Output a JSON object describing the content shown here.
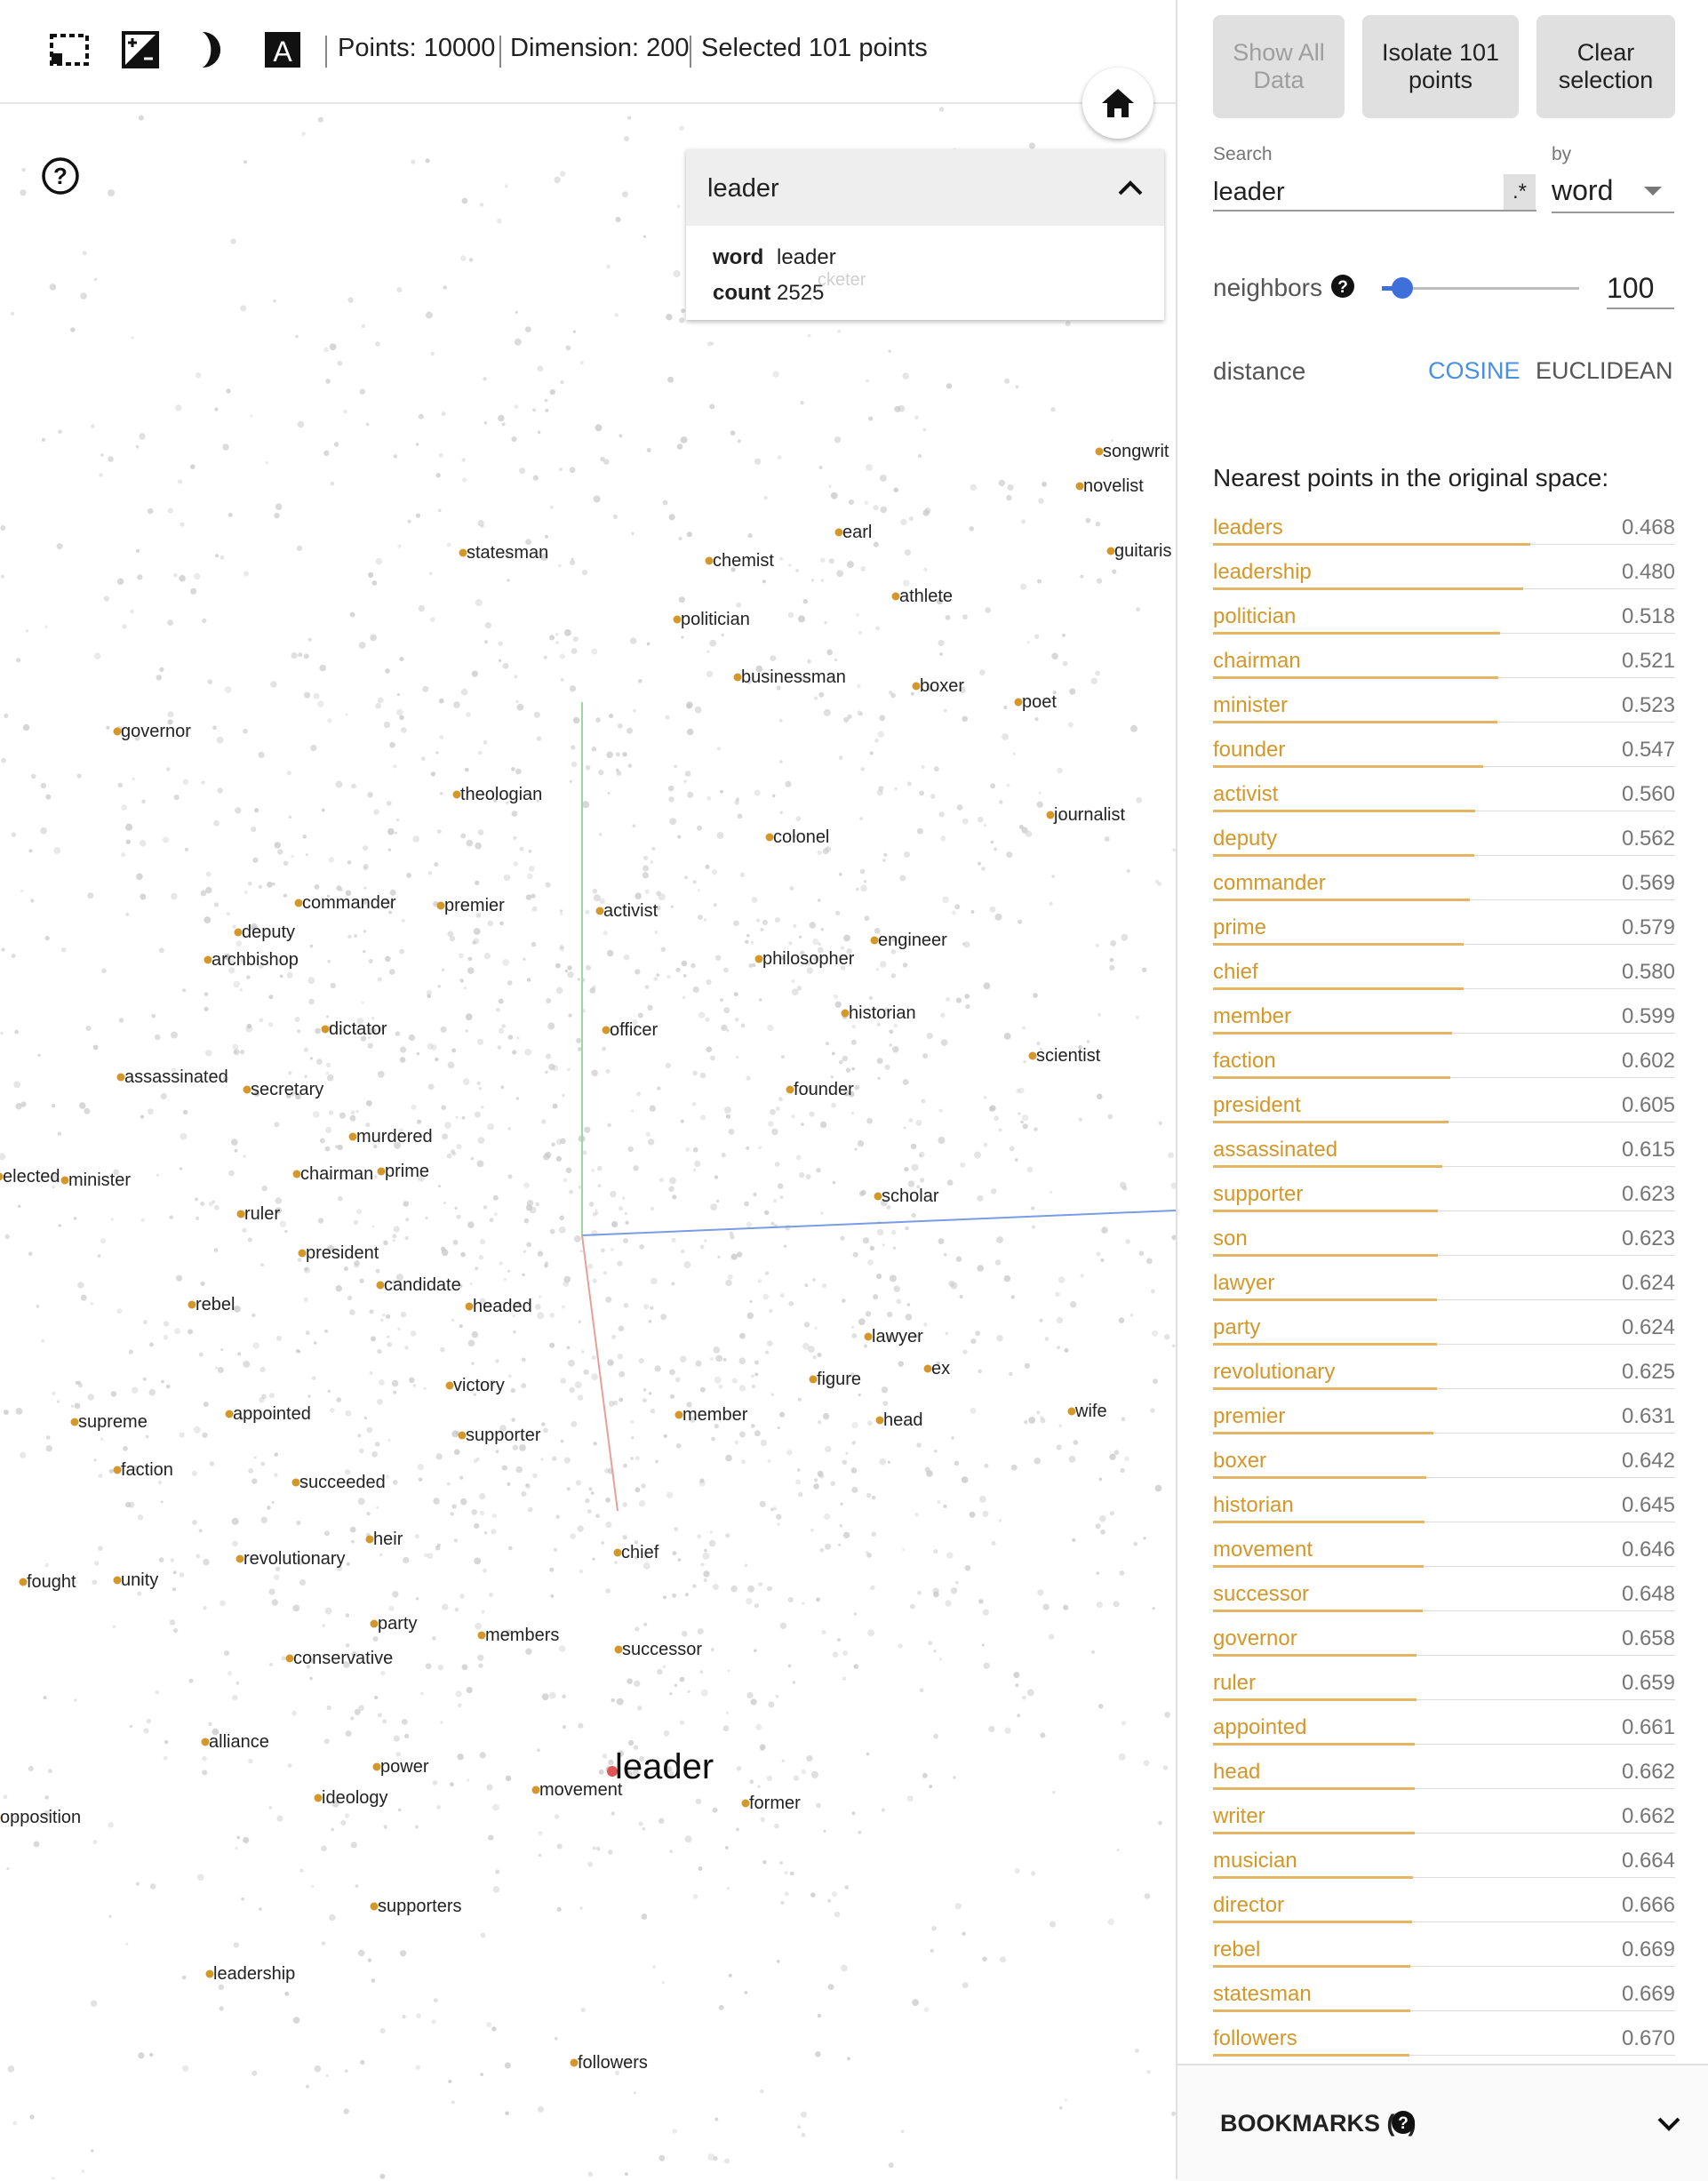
{
  "toolbar": {
    "points": "Points: 10000",
    "dimension": "Dimension: 200",
    "selected": "Selected 101 points"
  },
  "inspector_card": {
    "title": "leader",
    "word_key": "word",
    "word_value": "leader",
    "count_key": "count",
    "count_value": "2525",
    "ghost_label": "cketer"
  },
  "panel": {
    "buttons": {
      "show_all": "Show All Data",
      "isolate": "Isolate 101 points",
      "clear": "Clear selection"
    },
    "search": {
      "label": "Search",
      "value": "leader",
      "regex": ".*",
      "by_label": "by",
      "by_value": "word"
    },
    "neighbors": {
      "label": "neighbors",
      "value": "100"
    },
    "distance": {
      "label": "distance",
      "cosine": "COSINE",
      "euclidean": "EUCLIDEAN",
      "active": "cosine"
    },
    "nearest_title": "Nearest points in the original space:",
    "nearest": [
      {
        "word": "leaders",
        "dist": "0.468"
      },
      {
        "word": "leadership",
        "dist": "0.480"
      },
      {
        "word": "politician",
        "dist": "0.518"
      },
      {
        "word": "chairman",
        "dist": "0.521"
      },
      {
        "word": "minister",
        "dist": "0.523"
      },
      {
        "word": "founder",
        "dist": "0.547"
      },
      {
        "word": "activist",
        "dist": "0.560"
      },
      {
        "word": "deputy",
        "dist": "0.562"
      },
      {
        "word": "commander",
        "dist": "0.569"
      },
      {
        "word": "prime",
        "dist": "0.579"
      },
      {
        "word": "chief",
        "dist": "0.580"
      },
      {
        "word": "member",
        "dist": "0.599"
      },
      {
        "word": "faction",
        "dist": "0.602"
      },
      {
        "word": "president",
        "dist": "0.605"
      },
      {
        "word": "assassinated",
        "dist": "0.615"
      },
      {
        "word": "supporter",
        "dist": "0.623"
      },
      {
        "word": "son",
        "dist": "0.623"
      },
      {
        "word": "lawyer",
        "dist": "0.624"
      },
      {
        "word": "party",
        "dist": "0.624"
      },
      {
        "word": "revolutionary",
        "dist": "0.625"
      },
      {
        "word": "premier",
        "dist": "0.631"
      },
      {
        "word": "boxer",
        "dist": "0.642"
      },
      {
        "word": "historian",
        "dist": "0.645"
      },
      {
        "word": "movement",
        "dist": "0.646"
      },
      {
        "word": "successor",
        "dist": "0.648"
      },
      {
        "word": "governor",
        "dist": "0.658"
      },
      {
        "word": "ruler",
        "dist": "0.659"
      },
      {
        "word": "appointed",
        "dist": "0.661"
      },
      {
        "word": "head",
        "dist": "0.662"
      },
      {
        "word": "writer",
        "dist": "0.662"
      },
      {
        "word": "musician",
        "dist": "0.664"
      },
      {
        "word": "director",
        "dist": "0.666"
      },
      {
        "word": "rebel",
        "dist": "0.669"
      },
      {
        "word": "statesman",
        "dist": "0.669"
      },
      {
        "word": "followers",
        "dist": "0.670"
      }
    ],
    "bookmarks": "BOOKMARKS (1)"
  },
  "scatter": {
    "selected_word": "leader",
    "labels": [
      "songwrit",
      "novelist",
      "earl",
      "statesman",
      "chemist",
      "guitaris",
      "athlete",
      "politician",
      "businessman",
      "boxer",
      "poet",
      "governor",
      "theologian",
      "journalist",
      "colonel",
      "commander",
      "premier",
      "activist",
      "deputy",
      "engineer",
      "archbishop",
      "philosopher",
      "historian",
      "dictator",
      "officer",
      "scientist",
      "assassinated",
      "secretary",
      "founder",
      "murdered",
      "elected",
      "minister",
      "chairman",
      "prime",
      "scholar",
      "ruler",
      "president",
      "candidate",
      "rebel",
      "headed",
      "lawyer",
      "ex",
      "victory",
      "figure",
      "supreme",
      "appointed",
      "member",
      "head",
      "wife",
      "supporter",
      "faction",
      "succeeded",
      "heir",
      "chief",
      "revolutionary",
      "fought",
      "unity",
      "party",
      "members",
      "conservative",
      "successor",
      "alliance",
      "power",
      "movement",
      "former",
      "ideology",
      "opposition",
      "supporters",
      "leadership",
      "followers"
    ]
  },
  "colors": {
    "accent": "#d4972a",
    "selected_point": "#e05555",
    "slider": "#3f6fd8",
    "cosine_active": "#4a90e2"
  }
}
